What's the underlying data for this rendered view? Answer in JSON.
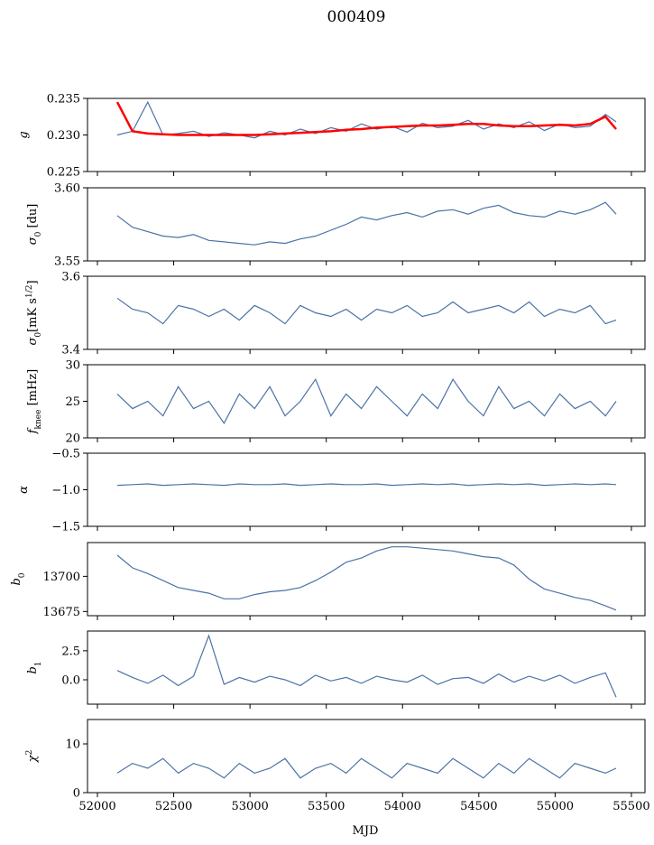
{
  "chart_data": {
    "type": "line",
    "title": "000409",
    "xlabel": "MJD",
    "xlim": [
      51935,
      55589
    ],
    "xticks": [
      52000,
      52500,
      53000,
      53500,
      54000,
      54500,
      55000,
      55500
    ],
    "x": [
      52130,
      52230,
      52330,
      52430,
      52530,
      52630,
      52730,
      52830,
      52930,
      53030,
      53130,
      53230,
      53330,
      53430,
      53530,
      53630,
      53730,
      53830,
      53930,
      54030,
      54130,
      54230,
      54330,
      54430,
      54530,
      54630,
      54730,
      54830,
      54930,
      55030,
      55130,
      55230,
      55330,
      55400
    ],
    "colors": {
      "blue": "#4c72a6",
      "red": "#ff0000"
    },
    "panels": [
      {
        "id": "g",
        "ylabel": [
          {
            "t": "g",
            "i": true
          }
        ],
        "ylim": [
          0.225,
          0.235
        ],
        "yticks": [
          0.225,
          0.23,
          0.235
        ],
        "ytick_labels": [
          "0.225",
          "0.230",
          "0.235"
        ],
        "series": [
          {
            "name": "g",
            "color": "blue",
            "values": [
              0.23,
              0.2305,
              0.2345,
              0.23,
              0.2302,
              0.2305,
              0.2298,
              0.2303,
              0.23,
              0.2296,
              0.2305,
              0.23,
              0.2308,
              0.2302,
              0.231,
              0.2305,
              0.2315,
              0.2308,
              0.2312,
              0.2304,
              0.2316,
              0.231,
              0.2312,
              0.232,
              0.2308,
              0.2315,
              0.231,
              0.2318,
              0.2306,
              0.2315,
              0.231,
              0.2312,
              0.2328,
              0.2318
            ]
          },
          {
            "name": "g model",
            "color": "red",
            "values": [
              0.2345,
              0.2305,
              0.2302,
              0.2301,
              0.23,
              0.23,
              0.23,
              0.23,
              0.23,
              0.23,
              0.2301,
              0.2302,
              0.2303,
              0.2304,
              0.2305,
              0.2307,
              0.2308,
              0.231,
              0.2311,
              0.2312,
              0.2313,
              0.2313,
              0.2314,
              0.2315,
              0.2315,
              0.2313,
              0.2312,
              0.2312,
              0.2313,
              0.2314,
              0.2313,
              0.2315,
              0.2325,
              0.2308
            ]
          }
        ]
      },
      {
        "id": "sigma0-du",
        "ylabel": [
          {
            "t": "σ",
            "i": true
          },
          {
            "t": "0",
            "sub": true
          },
          {
            "t": " [du]"
          }
        ],
        "ylim": [
          3.55,
          3.6
        ],
        "yticks": [
          3.55,
          3.6
        ],
        "ytick_labels": [
          "3.55",
          "3.60"
        ],
        "series": [
          {
            "name": "sigma0_du",
            "color": "blue",
            "values": [
              3.581,
              3.573,
              3.57,
              3.567,
              3.566,
              3.568,
              3.564,
              3.563,
              3.562,
              3.561,
              3.563,
              3.562,
              3.565,
              3.567,
              3.571,
              3.575,
              3.58,
              3.578,
              3.581,
              3.583,
              3.58,
              3.584,
              3.585,
              3.582,
              3.586,
              3.588,
              3.583,
              3.581,
              3.58,
              3.584,
              3.582,
              3.585,
              3.59,
              3.582
            ]
          }
        ]
      },
      {
        "id": "sigma0-mk",
        "ylabel": [
          {
            "t": "σ",
            "i": true
          },
          {
            "t": "0",
            "sub": true
          },
          {
            "t": "[mK s"
          },
          {
            "t": "1/2",
            "sup": true
          },
          {
            "t": "]"
          }
        ],
        "ylim": [
          3.4,
          3.6
        ],
        "yticks": [
          3.4,
          3.6
        ],
        "ytick_labels": [
          "3.4",
          "3.6"
        ],
        "series": [
          {
            "name": "sigma0_mK",
            "color": "blue",
            "values": [
              3.54,
              3.51,
              3.5,
              3.47,
              3.52,
              3.51,
              3.49,
              3.51,
              3.48,
              3.52,
              3.5,
              3.47,
              3.52,
              3.5,
              3.49,
              3.51,
              3.48,
              3.51,
              3.5,
              3.52,
              3.49,
              3.5,
              3.53,
              3.5,
              3.51,
              3.52,
              3.5,
              3.53,
              3.49,
              3.51,
              3.5,
              3.52,
              3.47,
              3.48
            ]
          }
        ]
      },
      {
        "id": "fknee",
        "ylabel": [
          {
            "t": "f",
            "i": true
          },
          {
            "t": "knee",
            "sub": true
          },
          {
            "t": " [mHz]"
          }
        ],
        "ylim": [
          20,
          30
        ],
        "yticks": [
          20,
          25,
          30
        ],
        "ytick_labels": [
          "20",
          "25",
          "30"
        ],
        "series": [
          {
            "name": "fknee",
            "color": "blue",
            "values": [
              26,
              24,
              25,
              23,
              27,
              24,
              25,
              22,
              26,
              24,
              27,
              23,
              25,
              28,
              23,
              26,
              24,
              27,
              25,
              23,
              26,
              24,
              28,
              25,
              23,
              27,
              24,
              25,
              23,
              26,
              24,
              25,
              23,
              25
            ]
          }
        ]
      },
      {
        "id": "alpha",
        "ylabel": [
          {
            "t": "α",
            "i": true
          }
        ],
        "ylim": [
          -1.5,
          -0.5
        ],
        "yticks": [
          -1.5,
          -1.0,
          -0.5
        ],
        "ytick_labels": [
          "−1.5",
          "−1.0",
          "−0.5"
        ],
        "series": [
          {
            "name": "alpha",
            "color": "blue",
            "values": [
              -0.94,
              -0.93,
              -0.92,
              -0.94,
              -0.93,
              -0.92,
              -0.93,
              -0.94,
              -0.92,
              -0.93,
              -0.93,
              -0.92,
              -0.94,
              -0.93,
              -0.92,
              -0.93,
              -0.93,
              -0.92,
              -0.94,
              -0.93,
              -0.92,
              -0.93,
              -0.92,
              -0.94,
              -0.93,
              -0.92,
              -0.93,
              -0.92,
              -0.94,
              -0.93,
              -0.92,
              -0.93,
              -0.92,
              -0.93
            ]
          }
        ]
      },
      {
        "id": "b0",
        "ylabel": [
          {
            "t": "b",
            "i": true
          },
          {
            "t": "0",
            "sub": true
          }
        ],
        "ylim": [
          13672,
          13724
        ],
        "yticks": [
          13675,
          13700
        ],
        "ytick_labels": [
          "13675",
          "13700"
        ],
        "series": [
          {
            "name": "b0",
            "color": "blue",
            "values": [
              13715,
              13706,
              13702,
              13697,
              13692,
              13690,
              13688,
              13684,
              13684,
              13687,
              13689,
              13690,
              13692,
              13697,
              13703,
              13710,
              13713,
              13718,
              13721,
              13721,
              13720,
              13719,
              13718,
              13716,
              13714,
              13713,
              13708,
              13698,
              13691,
              13688,
              13685,
              13683,
              13679,
              13676
            ]
          }
        ]
      },
      {
        "id": "b1",
        "ylabel": [
          {
            "t": "b",
            "i": true
          },
          {
            "t": "1",
            "sub": true
          }
        ],
        "ylim": [
          -2.1,
          4.2
        ],
        "yticks": [
          0.0,
          2.5
        ],
        "ytick_labels": [
          "0.0",
          "2.5"
        ],
        "series": [
          {
            "name": "b1",
            "color": "blue",
            "values": [
              0.8,
              0.2,
              -0.3,
              0.4,
              -0.5,
              0.3,
              3.8,
              -0.4,
              0.2,
              -0.2,
              0.3,
              0.0,
              -0.5,
              0.4,
              -0.1,
              0.2,
              -0.3,
              0.3,
              0.0,
              -0.2,
              0.4,
              -0.4,
              0.1,
              0.2,
              -0.3,
              0.5,
              -0.2,
              0.3,
              -0.1,
              0.4,
              -0.3,
              0.2,
              0.6,
              -1.5
            ]
          }
        ]
      },
      {
        "id": "chi2",
        "ylabel": [
          {
            "t": "χ",
            "i": true
          },
          {
            "t": "2",
            "sup": true
          }
        ],
        "ylim": [
          0,
          15
        ],
        "yticks": [
          0,
          10
        ],
        "ytick_labels": [
          "0",
          "10"
        ],
        "series": [
          {
            "name": "chi2",
            "color": "blue",
            "values": [
              4,
              6,
              5,
              7,
              4,
              6,
              5,
              3,
              6,
              4,
              5,
              7,
              3,
              5,
              6,
              4,
              7,
              5,
              3,
              6,
              5,
              4,
              7,
              5,
              3,
              6,
              4,
              7,
              5,
              3,
              6,
              5,
              4,
              5
            ]
          }
        ]
      }
    ]
  }
}
